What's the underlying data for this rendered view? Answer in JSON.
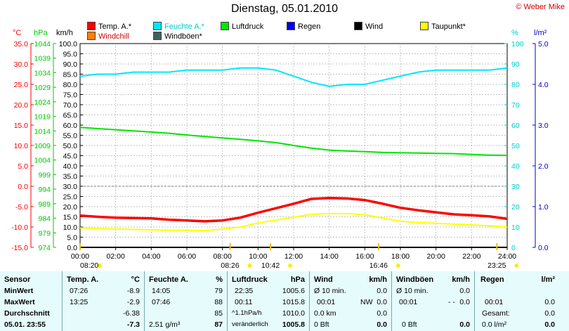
{
  "header": {
    "title": "Dienstag, 05.01.2010",
    "copyright": "© Weber Mike"
  },
  "legend": [
    {
      "label": "Temp. A.*",
      "color": "#ff0000"
    },
    {
      "label": "Feuchte A.*",
      "color": "#00e6ff"
    },
    {
      "label": "Luftdruck",
      "color": "#00e600"
    },
    {
      "label": "Regen",
      "color": "#0000ff"
    },
    {
      "label": "Wind",
      "color": "#000000"
    },
    {
      "label": "Taupunkt*",
      "color": "#ffff00"
    },
    {
      "label": "Windchill",
      "color": "#ff8000"
    },
    {
      "label": "Windböen*",
      "color": "#406060"
    }
  ],
  "chart_data": {
    "type": "line",
    "x": [
      "00:00",
      "01:00",
      "02:00",
      "03:00",
      "04:00",
      "05:00",
      "06:00",
      "07:00",
      "08:00",
      "09:00",
      "10:00",
      "11:00",
      "12:00",
      "13:00",
      "14:00",
      "15:00",
      "16:00",
      "17:00",
      "18:00",
      "19:00",
      "20:00",
      "21:00",
      "22:00",
      "23:00",
      "24:00"
    ],
    "xtick_labels": [
      "00:00",
      "02:00",
      "04:00",
      "06:00",
      "08:00",
      "10:00",
      "12:00",
      "14:00",
      "16:00",
      "18:00",
      "20:00",
      "22:00",
      "24:00"
    ],
    "axes": {
      "temp": {
        "unit": "°C",
        "color": "#ff0000",
        "range": [
          -15,
          35
        ],
        "ticks": [
          "35.0",
          "30.0",
          "25.0",
          "20.0",
          "15.0",
          "10.0",
          "5.0",
          "0.0",
          "-5.0",
          "-10.0",
          "-15.0"
        ]
      },
      "pressure": {
        "unit": "hPa",
        "color": "#00cc00",
        "range": [
          974,
          1044
        ],
        "ticks": [
          "1044",
          "1039",
          "1034",
          "1029",
          "1024",
          "1019",
          "1014",
          "1009",
          "1004",
          "999",
          "994",
          "989",
          "984",
          "979",
          "974"
        ]
      },
      "wind": {
        "unit": "km/h",
        "color": "#000000",
        "range": [
          0,
          100
        ],
        "ticks": [
          "100.0",
          "95.0",
          "90.0",
          "85.0",
          "80.0",
          "75.0",
          "70.0",
          "65.0",
          "60.0",
          "55.0",
          "50.0",
          "45.0",
          "40.0",
          "35.0",
          "30.0",
          "25.0",
          "20.0",
          "15.0",
          "10.0",
          "5.0",
          "0.0"
        ]
      },
      "humidity": {
        "unit": "%",
        "color": "#00cccc",
        "range": [
          0,
          100
        ],
        "ticks": [
          "100",
          "90",
          "80",
          "70",
          "60",
          "50",
          "40",
          "30",
          "20",
          "10",
          "0"
        ]
      },
      "rain": {
        "unit": "l/m²",
        "color": "#0000cc",
        "range": [
          0,
          5
        ],
        "ticks": [
          "5.0",
          "4.0",
          "3.0",
          "2.0",
          "1.0",
          "0.0"
        ]
      }
    },
    "series": [
      {
        "name": "Temp. A.*",
        "axis": "temp",
        "color": "#ff0000",
        "values": [
          -7.2,
          -7.5,
          -7.7,
          -7.8,
          -7.9,
          -8.2,
          -8.4,
          -8.6,
          -8.4,
          -7.7,
          -6.5,
          -5.4,
          -4.3,
          -3.1,
          -2.9,
          -3.0,
          -3.4,
          -4.3,
          -5.3,
          -5.9,
          -6.4,
          -6.9,
          -7.1,
          -7.4,
          -8.0
        ]
      },
      {
        "name": "Feuchte A.*",
        "axis": "humidity",
        "color": "#00e6ff",
        "values": [
          84,
          85,
          85,
          86,
          86,
          86,
          87,
          87,
          87,
          88,
          88,
          87,
          84,
          81,
          79,
          80,
          80,
          82,
          84,
          86,
          87,
          87,
          87,
          87,
          88
        ]
      },
      {
        "name": "Luftdruck",
        "axis": "pressure",
        "color": "#00e600",
        "values": [
          1015.2,
          1014.8,
          1014.4,
          1014.0,
          1013.6,
          1013.2,
          1012.6,
          1012.1,
          1011.6,
          1011.1,
          1010.6,
          1010.0,
          1009.0,
          1008.1,
          1007.4,
          1007.1,
          1006.9,
          1006.6,
          1006.5,
          1006.4,
          1006.3,
          1006.2,
          1005.9,
          1005.7,
          1005.6
        ]
      },
      {
        "name": "Taupunkt*",
        "axis": "temp",
        "color": "#ffff00",
        "values": [
          -10.2,
          -10.4,
          -10.5,
          -10.6,
          -10.7,
          -10.8,
          -10.8,
          -10.9,
          -10.5,
          -10.0,
          -9.0,
          -8.3,
          -7.6,
          -6.9,
          -6.7,
          -6.7,
          -7.0,
          -7.8,
          -8.6,
          -8.9,
          -9.1,
          -9.3,
          -9.5,
          -9.7,
          -10.0
        ]
      },
      {
        "name": "Wind",
        "axis": "wind",
        "color": "#000000",
        "values": [
          0,
          0,
          0,
          0,
          0,
          0,
          0,
          0,
          0,
          0,
          0,
          0,
          0,
          0,
          0,
          0,
          0,
          0,
          0,
          0,
          0,
          0,
          0,
          0,
          0
        ]
      }
    ],
    "event_labels": [
      {
        "text": "08:20",
        "time": 0.0
      },
      {
        "text": "08:26",
        "time": 8.43
      },
      {
        "text": "10:42",
        "time": 10.7
      },
      {
        "text": "16:46",
        "time": 16.77
      },
      {
        "text": "23:25",
        "time": 23.42
      }
    ],
    "grid": true
  },
  "table": {
    "sensor": {
      "title": "Sensor",
      "rows": [
        "MinWert",
        "MaxWert",
        "Durchschnitt",
        "05.01. 23:55"
      ]
    },
    "temp": {
      "title": "Temp. A.",
      "unit": "°C",
      "min_time": "07:26",
      "min": "-8.9",
      "max_time": "13:25",
      "max": "-2.9",
      "avg": "-6.38",
      "current": "-7.3"
    },
    "humidity": {
      "title": "Feuchte A.",
      "unit": "%",
      "min_time": "14:05",
      "min": "79",
      "max_time": "07:46",
      "max": "88",
      "avg": "85",
      "abs": "2.51 g/m³",
      "current": "87"
    },
    "pressure": {
      "title": "Luftdruck",
      "unit": "hPa",
      "min_time": "22:35",
      "min": "1005.6",
      "max_time": "00:11",
      "max": "1015.8",
      "trend": "^1.1hPa/h",
      "avg": "1010.0",
      "tendency": "veränderlich",
      "current": "1005.8"
    },
    "wind": {
      "title": "Wind",
      "unit": "km/h",
      "r1_label": "Ø 10 min.",
      "r1_val": "0.0",
      "r2_time": "00:01",
      "r2_dir": "NW",
      "r2_val": "0.0",
      "r3_label": "0.0 km",
      "r3_val": "0.0",
      "r4_label": "0 Bft",
      "current": "0.0"
    },
    "gust": {
      "title": "Windböen",
      "unit": "km/h",
      "r1_label": "Ø 10 min.",
      "r1_val": "0.0",
      "r2_time": "00:01",
      "r2_dir": "- -",
      "r2_val": "0.0",
      "r4_label": "0 Bft",
      "current": "0.0"
    },
    "rain": {
      "title": "Regen",
      "unit": "l/m²",
      "r2_time": "00:01",
      "r2_val": "0.0",
      "r3_label": "Gesamt:",
      "r3_val": "0.0",
      "r4_label": "0.0 l/m²",
      "current": "0.0"
    }
  }
}
